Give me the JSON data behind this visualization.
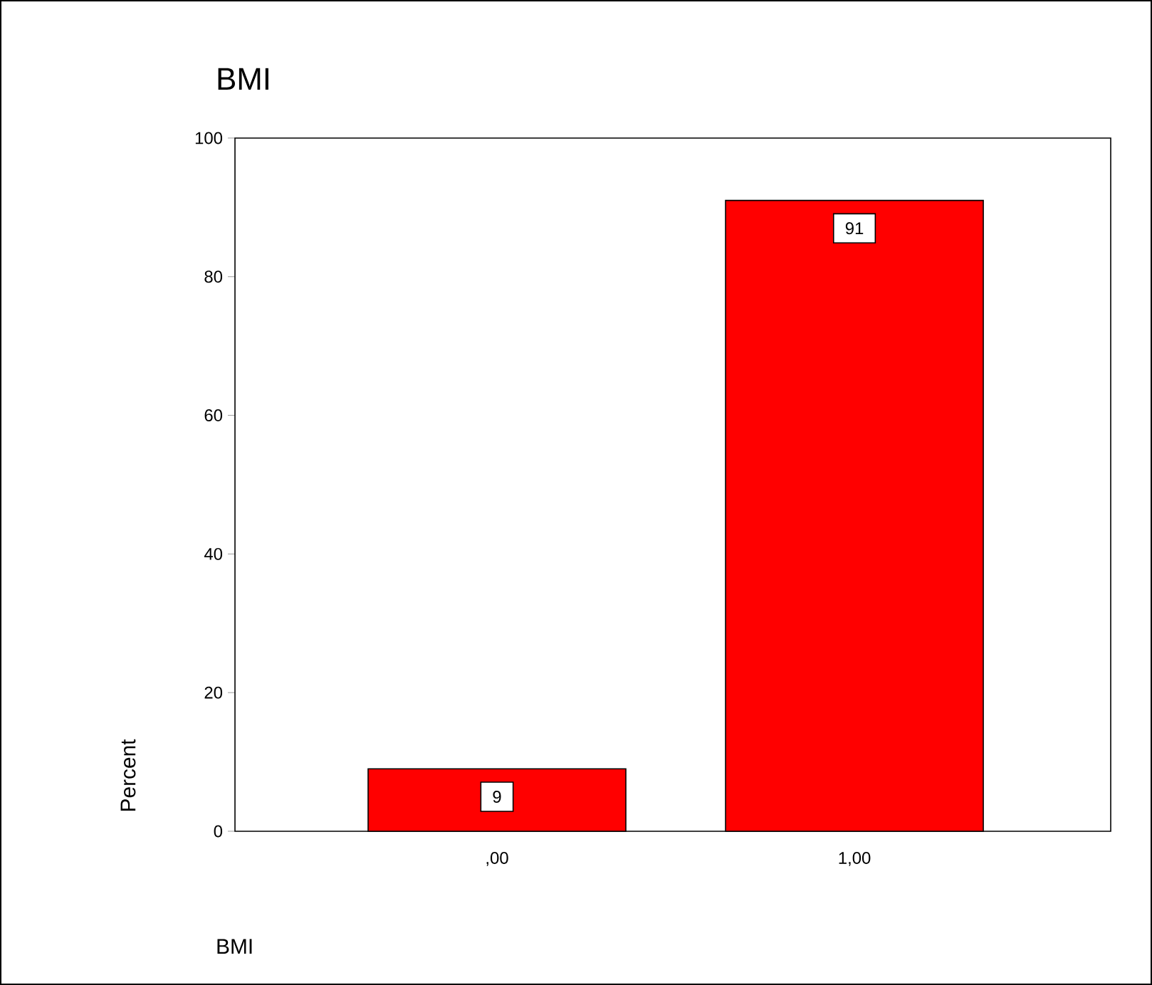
{
  "chart_data": {
    "type": "bar",
    "title": "BMI",
    "xlabel": "BMI",
    "ylabel": "Percent",
    "categories": [
      ",00",
      "1,00"
    ],
    "values": [
      9,
      91
    ],
    "color": "#ff0000",
    "ylim": [
      0,
      100
    ],
    "yticks": [
      0,
      20,
      40,
      60,
      80,
      100
    ],
    "data_labels": true,
    "grid": false
  }
}
